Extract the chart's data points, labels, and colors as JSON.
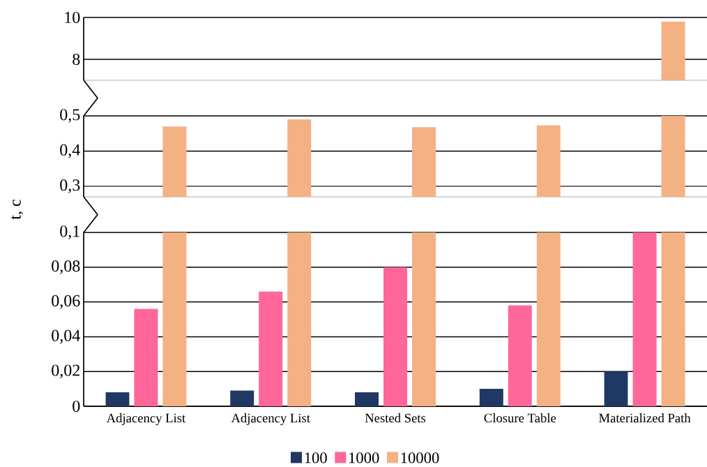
{
  "chart_data": [
    {
      "type": "bar",
      "categories": [
        null,
        null,
        null,
        null,
        null
      ],
      "series": [
        {
          "color": "#203864",
          "values": [
            null,
            null,
            null,
            null,
            null
          ]
        },
        {
          "color": "#ff6699",
          "values": [
            null,
            null,
            null,
            null,
            null
          ]
        },
        {
          "color": "#f4b183",
          "values": [
            null,
            null,
            null,
            null,
            9.8
          ]
        }
      ],
      "ylim": [
        7,
        10
      ],
      "yticks": [
        8,
        10
      ],
      "grid": "y",
      "tick_labels": "y"
    },
    {
      "type": "bar",
      "categories": [
        null,
        null,
        null,
        null,
        null
      ],
      "ylabel": "t, c",
      "series": [
        {
          "color": "#203864",
          "values": [
            null,
            null,
            null,
            null,
            null
          ]
        },
        {
          "color": "#ff6699",
          "values": [
            null,
            null,
            null,
            null,
            null
          ]
        },
        {
          "color": "#f4b183",
          "values": [
            0.47,
            0.49,
            0.468,
            0.473,
            0.5
          ]
        }
      ],
      "ylim": [
        0.27,
        0.5
      ],
      "yticks": [
        {
          "value": 0.3,
          "label": "0,3"
        },
        {
          "value": 0.4,
          "label": "0,4"
        },
        {
          "value": 0.5,
          "label": "0,5"
        }
      ],
      "grid": "y",
      "tick_labels": "y"
    },
    {
      "type": "bar",
      "categories": [
        "Adjacency List",
        "Adjacency List",
        "Nested Sets",
        "Closure Table",
        "Materialized Path"
      ],
      "series": [
        {
          "name": "100",
          "color": "#203864",
          "values": [
            0.008,
            0.009,
            0.008,
            0.01,
            0.02
          ]
        },
        {
          "name": "1000",
          "color": "#ff6699",
          "values": [
            0.056,
            0.066,
            0.08,
            0.058,
            0.1
          ]
        },
        {
          "name": "10000",
          "color": "#f4b183",
          "values": [
            0.1,
            0.1,
            0.1,
            0.1,
            0.1
          ]
        }
      ],
      "ylim": [
        0,
        0.1
      ],
      "yticks": [
        {
          "value": 0,
          "label": "0"
        },
        {
          "value": 0.02,
          "label": "0,02"
        },
        {
          "value": 0.04,
          "label": "0,04"
        },
        {
          "value": 0.06,
          "label": "0,06"
        },
        {
          "value": 0.08,
          "label": "0,08"
        },
        {
          "value": 0.1,
          "label": "0,1"
        }
      ],
      "grid": "y",
      "legend": "bottom"
    }
  ]
}
